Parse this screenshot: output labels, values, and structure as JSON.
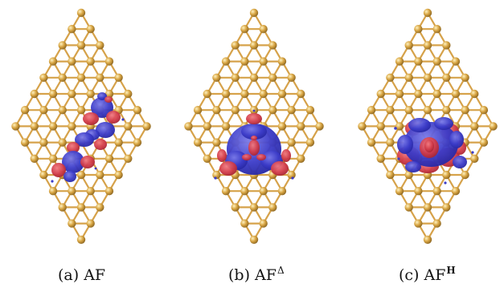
{
  "panels": [
    {
      "id": "a",
      "caption": {
        "prefix": "(a) AF",
        "sup": ""
      },
      "pattern": "two-bent-chains",
      "colors": {
        "negative": "#3535c5",
        "positive": "#cc3040",
        "lattice": "#d6a24a"
      }
    },
    {
      "id": "b",
      "caption": {
        "prefix": "(b) AF",
        "sup": "Δ"
      },
      "pattern": "triangle",
      "colors": {
        "negative": "#3535c5",
        "positive": "#cc3040",
        "lattice": "#d6a24a"
      }
    },
    {
      "id": "c",
      "caption": {
        "prefix": "(c) AF",
        "sup": "H"
      },
      "pattern": "hexagon",
      "colors": {
        "negative": "#3535c5",
        "positive": "#cc3040",
        "lattice": "#d6a24a"
      }
    }
  ]
}
